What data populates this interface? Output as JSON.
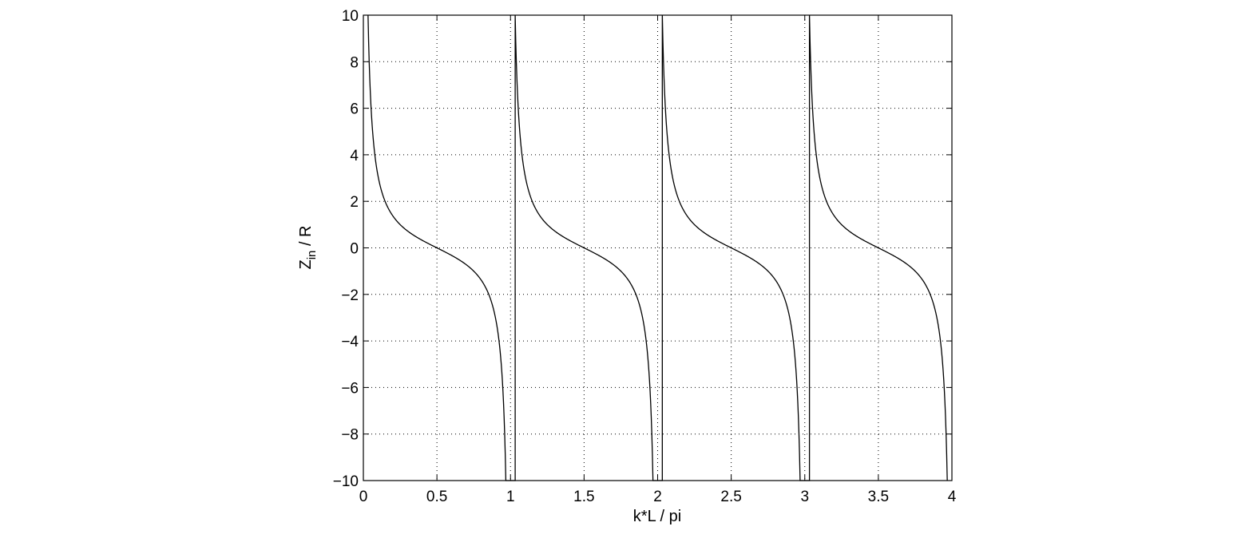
{
  "chart_data": {
    "type": "line",
    "title": "",
    "xlabel": "k*L / pi",
    "ylabel": {
      "main": "Z",
      "subscript": "in",
      "rest": " / R"
    },
    "xlim": [
      0,
      4
    ],
    "ylim": [
      -10,
      10
    ],
    "xticks": [
      0,
      0.5,
      1,
      1.5,
      2,
      2.5,
      3,
      3.5,
      4
    ],
    "xtick_labels": [
      "0",
      "0.5",
      "1",
      "1.5",
      "2",
      "2.5",
      "3",
      "3.5",
      "4"
    ],
    "yticks": [
      -10,
      -8,
      -6,
      -4,
      -2,
      0,
      2,
      4,
      6,
      8,
      10
    ],
    "ytick_labels": [
      "−10",
      "−8",
      "−6",
      "−4",
      "−2",
      "0",
      "2",
      "4",
      "6",
      "8",
      "10"
    ],
    "grid": true,
    "box": true,
    "series": [
      {
        "function": "cot(pi*x)",
        "color": "#000000",
        "samples": [
          {
            "x": 0.05,
            "y": 6.31
          },
          {
            "x": 0.1,
            "y": 3.08
          },
          {
            "x": 0.2,
            "y": 1.38
          },
          {
            "x": 0.3,
            "y": 0.73
          },
          {
            "x": 0.4,
            "y": 0.32
          },
          {
            "x": 0.5,
            "y": 0
          },
          {
            "x": 0.6,
            "y": -0.32
          },
          {
            "x": 0.7,
            "y": -0.73
          },
          {
            "x": 0.8,
            "y": -1.38
          },
          {
            "x": 0.9,
            "y": -3.08
          },
          {
            "x": 0.95,
            "y": -6.31
          }
        ],
        "period": 1,
        "asymptotes": [
          0,
          1,
          2,
          3,
          4
        ]
      }
    ]
  }
}
